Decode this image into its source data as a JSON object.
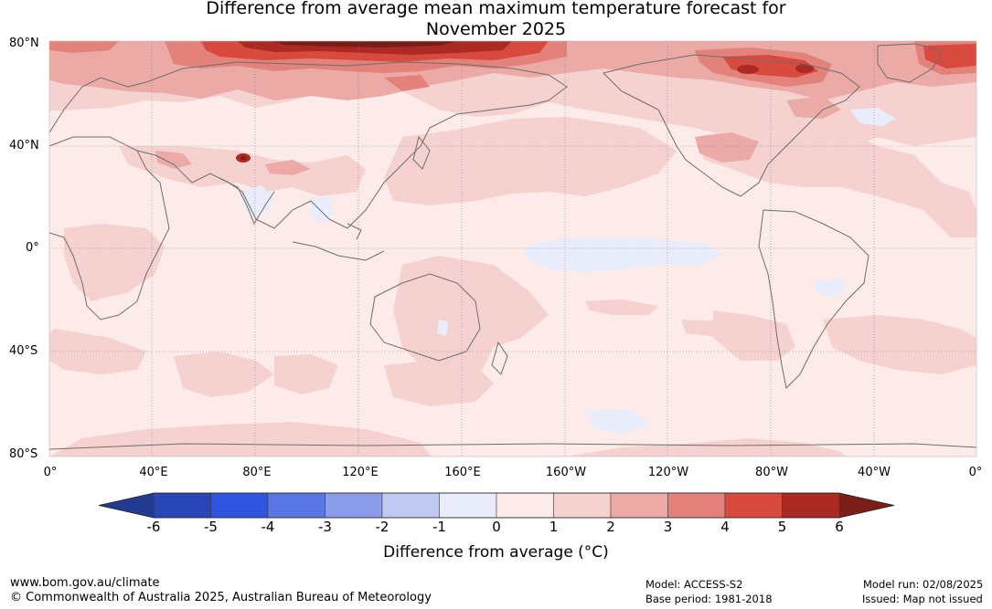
{
  "title": {
    "line1": "Difference from average mean maximum temperature forecast for",
    "line2": "November 2025"
  },
  "map": {
    "type": "global anomaly map",
    "lat_labels": [
      "80°N",
      "40°N",
      "0°",
      "40°S",
      "80°S"
    ],
    "lon_labels": [
      "0°",
      "40°E",
      "80°E",
      "120°E",
      "160°E",
      "160°W",
      "120°W",
      "80°W",
      "40°W",
      "0°"
    ],
    "ocean_base_color": "#fcebe9",
    "land_outline_color": "#6e6e6e",
    "gridlines": true
  },
  "colorbar": {
    "ticks": [
      "-6",
      "-5",
      "-4",
      "-3",
      "-2",
      "-1",
      "0",
      "1",
      "2",
      "3",
      "4",
      "5",
      "6"
    ],
    "colors": [
      "#223a8f",
      "#2a45b8",
      "#2f55e0",
      "#5a76e3",
      "#8a9cea",
      "#c0c9f2",
      "#e9edfb",
      "#fcebe9",
      "#f5d2cf",
      "#ebaaa5",
      "#e3817b",
      "#d94a3e",
      "#ab2a24",
      "#7a1e17"
    ],
    "label": "Difference from average (°C)"
  },
  "footer": {
    "url": "www.bom.gov.au/climate",
    "copyright": "© Commonwealth of Australia 2025, Australian Bureau of Meteorology",
    "model": "Model: ACCESS-S2",
    "base_period": "Base period: 1981-2018",
    "model_run": "Model run: 02/08/2025",
    "issued": "Issued: Map not issued"
  }
}
